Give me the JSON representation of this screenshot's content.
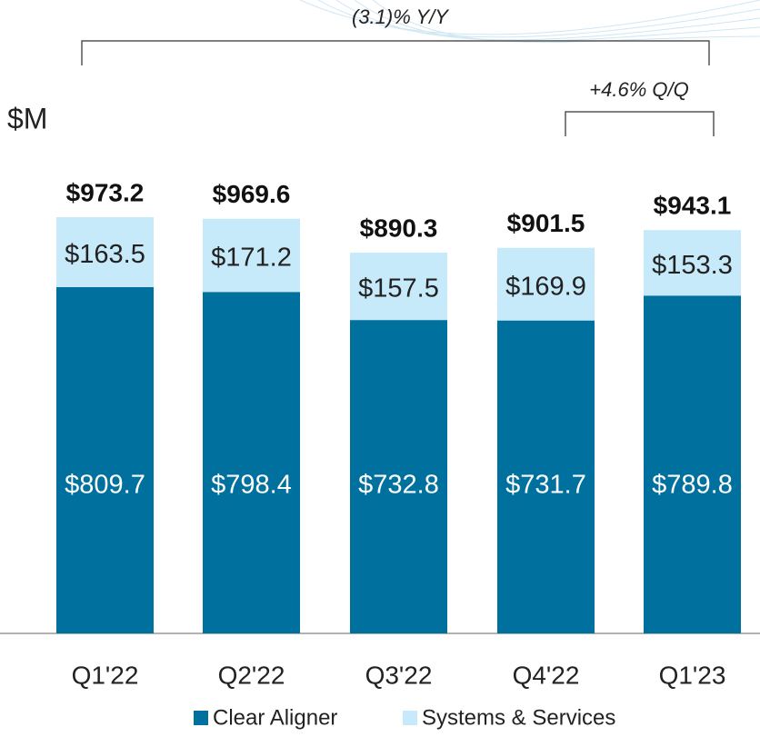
{
  "chart_data": {
    "type": "stacked_bar",
    "unit_label": "$M",
    "categories": [
      "Q1'22",
      "Q2'22",
      "Q3'22",
      "Q4'22",
      "Q1'23"
    ],
    "series": [
      {
        "name": "Clear Aligner",
        "color": "#00709f",
        "values": [
          809.7,
          798.4,
          732.8,
          731.7,
          789.8
        ],
        "value_labels": [
          "$809.7",
          "$798.4",
          "$732.8",
          "$731.7",
          "$789.8"
        ]
      },
      {
        "name": "Systems & Services",
        "color": "#c6eaf9",
        "values": [
          163.5,
          171.2,
          157.5,
          169.9,
          153.3
        ],
        "value_labels": [
          "$163.5",
          "$171.2",
          "$157.5",
          "$169.9",
          "$153.3"
        ]
      }
    ],
    "totals": [
      973.2,
      969.6,
      890.3,
      901.5,
      943.1
    ],
    "total_labels": [
      "$973.2",
      "$969.6",
      "$890.3",
      "$901.5",
      "$943.1"
    ],
    "annotations": [
      "(3.1)% Y/Y",
      "+4.6% Q/Q"
    ]
  }
}
